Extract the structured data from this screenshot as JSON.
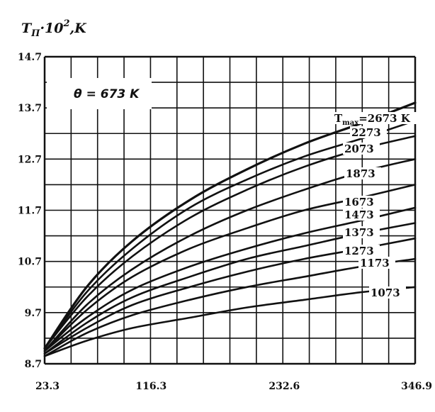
{
  "chart_data": {
    "type": "line",
    "ylabel_main": "T",
    "ylabel_sub": "П",
    "ylabel_rest": "·10",
    "ylabel_sup": "2",
    "ylabel_unit": ",K",
    "annotation": "θ = 673 K",
    "xlim": [
      23.3,
      346.9
    ],
    "ylim": [
      8.7,
      14.7
    ],
    "xticks": [
      "23.3",
      "116.3",
      "232.6",
      "346.9"
    ],
    "yticks": [
      "8.7",
      "9.7",
      "10.7",
      "11.7",
      "12.7",
      "13.7",
      "14.7"
    ],
    "grid": true,
    "series": [
      {
        "name": "2673 K",
        "label_prefix": "T",
        "label_sub": "max",
        "label_eq": "=",
        "x": [
          23.3,
          60,
          100,
          150,
          200,
          250,
          300,
          346.9
        ],
        "values": [
          9.0,
          10.2,
          11.1,
          11.9,
          12.5,
          13.0,
          13.4,
          13.8
        ]
      },
      {
        "name": "2273",
        "x": [
          23.3,
          60,
          100,
          150,
          200,
          250,
          300,
          346.9
        ],
        "values": [
          9.0,
          10.1,
          10.95,
          11.75,
          12.3,
          12.75,
          13.1,
          13.45
        ]
      },
      {
        "name": "2073",
        "x": [
          23.3,
          60,
          100,
          150,
          200,
          250,
          300,
          346.9
        ],
        "values": [
          9.0,
          10.0,
          10.8,
          11.55,
          12.1,
          12.55,
          12.9,
          13.15
        ]
      },
      {
        "name": "1873",
        "x": [
          23.3,
          60,
          100,
          150,
          200,
          250,
          300,
          346.9
        ],
        "values": [
          8.95,
          9.85,
          10.55,
          11.2,
          11.7,
          12.1,
          12.45,
          12.7
        ]
      },
      {
        "name": "1673",
        "x": [
          23.3,
          60,
          100,
          150,
          200,
          250,
          300,
          346.9
        ],
        "values": [
          8.95,
          9.75,
          10.4,
          10.95,
          11.35,
          11.7,
          11.95,
          12.2
        ]
      },
      {
        "name": "1473",
        "x": [
          23.3,
          60,
          100,
          150,
          200,
          250,
          300,
          346.9
        ],
        "values": [
          8.95,
          9.6,
          10.15,
          10.6,
          10.95,
          11.25,
          11.5,
          11.75
        ]
      },
      {
        "name": "1373",
        "x": [
          23.3,
          60,
          100,
          150,
          200,
          250,
          300,
          346.9
        ],
        "values": [
          8.9,
          9.5,
          10.0,
          10.4,
          10.75,
          11.0,
          11.25,
          11.45
        ]
      },
      {
        "name": "1273",
        "x": [
          23.3,
          60,
          100,
          150,
          200,
          250,
          300,
          346.9
        ],
        "values": [
          8.9,
          9.4,
          9.85,
          10.2,
          10.5,
          10.75,
          10.95,
          11.15
        ]
      },
      {
        "name": "1173",
        "x": [
          23.3,
          60,
          100,
          150,
          200,
          250,
          300,
          346.9
        ],
        "values": [
          8.85,
          9.3,
          9.65,
          9.95,
          10.2,
          10.4,
          10.6,
          10.75
        ]
      },
      {
        "name": "1073",
        "x": [
          23.3,
          60,
          100,
          150,
          200,
          250,
          300,
          346.9
        ],
        "values": [
          8.85,
          9.15,
          9.4,
          9.6,
          9.8,
          9.95,
          10.1,
          10.2
        ]
      }
    ]
  }
}
